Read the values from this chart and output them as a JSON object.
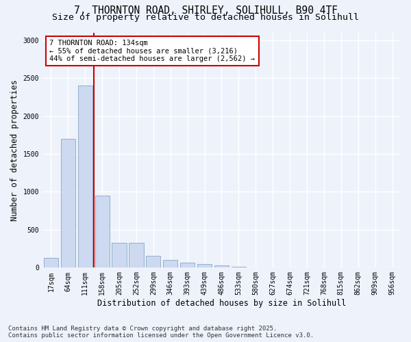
{
  "title_line1": "7, THORNTON ROAD, SHIRLEY, SOLIHULL, B90 4TF",
  "title_line2": "Size of property relative to detached houses in Solihull",
  "xlabel": "Distribution of detached houses by size in Solihull",
  "ylabel": "Number of detached properties",
  "categories": [
    "17sqm",
    "64sqm",
    "111sqm",
    "158sqm",
    "205sqm",
    "252sqm",
    "299sqm",
    "346sqm",
    "393sqm",
    "439sqm",
    "486sqm",
    "533sqm",
    "580sqm",
    "627sqm",
    "674sqm",
    "721sqm",
    "768sqm",
    "815sqm",
    "862sqm",
    "909sqm",
    "956sqm"
  ],
  "values": [
    130,
    1700,
    2400,
    950,
    330,
    330,
    155,
    100,
    70,
    50,
    30,
    10,
    5,
    3,
    2,
    1,
    0,
    0,
    0,
    0,
    0
  ],
  "bar_color": "#ccd9f0",
  "bar_edge_color": "#7799bb",
  "vline_bin_index": 2,
  "vline_color": "#cc0000",
  "vline_label_title": "7 THORNTON ROAD: 134sqm",
  "vline_label_line2": "← 55% of detached houses are smaller (3,216)",
  "vline_label_line3": "44% of semi-detached houses are larger (2,562) →",
  "annotation_box_color": "#cc0000",
  "annotation_fill": "#ffffff",
  "ylim": [
    0,
    3100
  ],
  "yticks": [
    0,
    500,
    1000,
    1500,
    2000,
    2500,
    3000
  ],
  "footer_line1": "Contains HM Land Registry data © Crown copyright and database right 2025.",
  "footer_line2": "Contains public sector information licensed under the Open Government Licence v3.0.",
  "background_color": "#eef2fb",
  "plot_background": "#eef2fb",
  "grid_color": "#ffffff",
  "title_fontsize": 10.5,
  "subtitle_fontsize": 9.5,
  "axis_label_fontsize": 8.5,
  "tick_fontsize": 7,
  "footer_fontsize": 6.5,
  "annotation_fontsize": 7.5
}
